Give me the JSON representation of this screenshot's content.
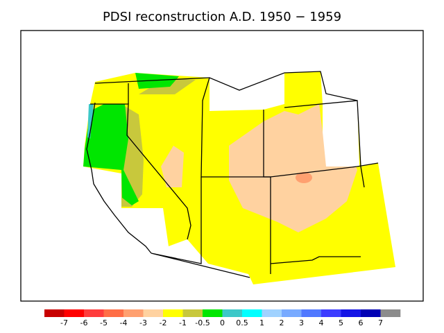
{
  "title": "PDSI reconstruction A.D. 1950 − 1959",
  "colorbar": {
    "labels": [
      -7,
      -6,
      -5,
      -4,
      -3,
      -2,
      -1,
      -0.5,
      0,
      0.5,
      1,
      2,
      3,
      4,
      5,
      6,
      7
    ],
    "colors": [
      "#c80000",
      "#ff0000",
      "#ff3c3c",
      "#ff6e46",
      "#ffa070",
      "#ffd2a0",
      "#ffff00",
      "#c8c83c",
      "#00e600",
      "#3cc8c8",
      "#00ffff",
      "#a0d2ff",
      "#78aaff",
      "#5078ff",
      "#3c3cff",
      "#1414e6",
      "#0000b4",
      "#8c8c8c"
    ]
  }
}
